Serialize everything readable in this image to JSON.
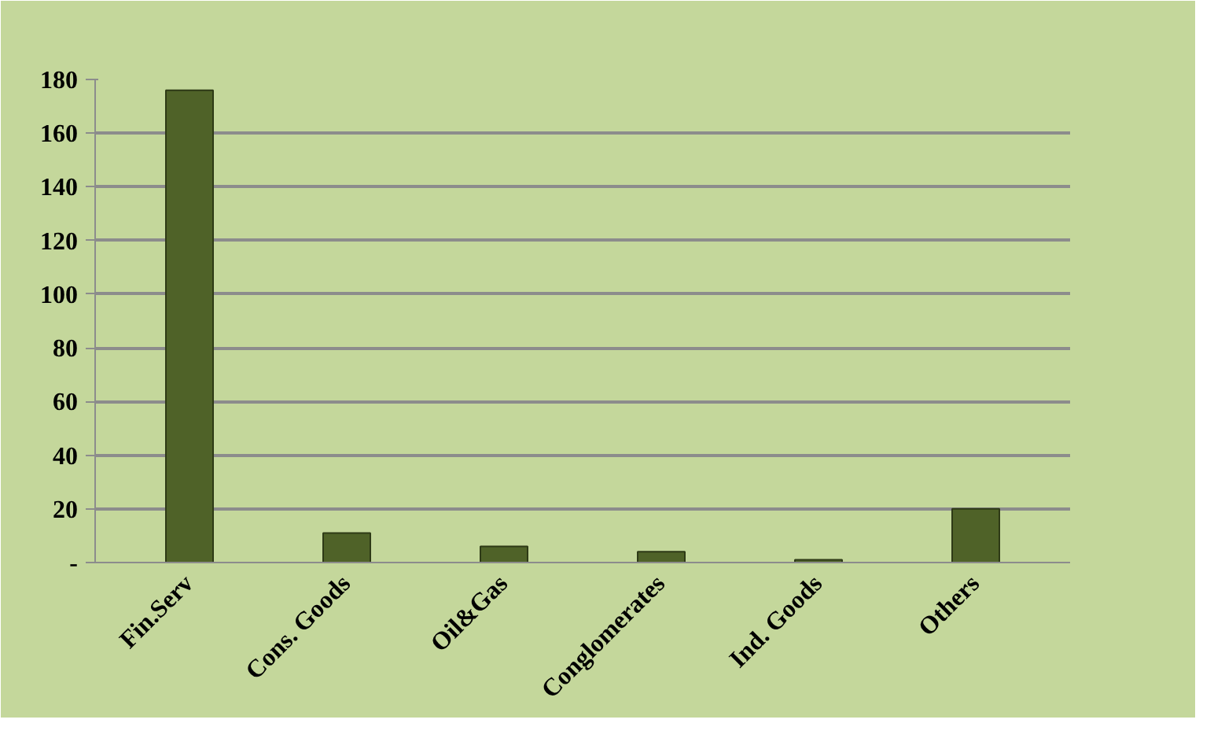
{
  "chart_data": {
    "type": "bar",
    "categories": [
      "Fin.Serv",
      "Cons. Goods",
      "Oil&Gas",
      "Conglomerates",
      "Ind. Goods",
      "Others"
    ],
    "values": [
      176,
      11,
      6,
      4,
      1,
      20
    ],
    "color": "#4f6228",
    "ylim": [
      0,
      180
    ],
    "yticks": [
      {
        "value": 0,
        "label": "-"
      },
      20,
      40,
      60,
      80,
      100,
      120,
      140,
      160,
      180
    ],
    "grid": "y"
  }
}
